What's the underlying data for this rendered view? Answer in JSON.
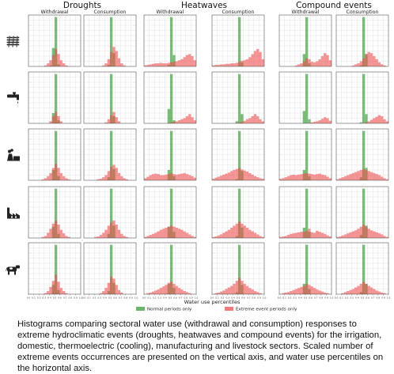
{
  "chart_data": {
    "type": "histogram-grid",
    "group_titles": [
      "Droughts",
      "Heatwaves",
      "Compound events"
    ],
    "column_titles": [
      "Withdrawal",
      "Consumption",
      "Withdrawal",
      "Consumption",
      "Withdrawal",
      "Consumption"
    ],
    "row_sectors": [
      "irrigation",
      "domestic",
      "thermoelectric (cooling)",
      "manufacturing",
      "livestock"
    ],
    "row_icon_names": [
      "wheat-icon",
      "faucet-icon",
      "power-plant-icon",
      "factory-icon",
      "cow-icon"
    ],
    "x_tick_labels": [
      "0.0",
      "0.1",
      "0.2",
      "0.3",
      "0.4",
      "0.5",
      "0.6",
      "0.7",
      "0.8",
      "0.9",
      "1.0"
    ],
    "xlim": [
      0,
      1
    ],
    "ylim": [
      0,
      10
    ],
    "bin_width": 0.05,
    "xlabel": "Water use percentiles",
    "legend": [
      {
        "label": "Normal periods only",
        "color": "#3a9e3a"
      },
      {
        "label": "Extreme event periods only",
        "color": "#ee4d4d"
      }
    ],
    "grid": true,
    "legend_position": "bottom-center",
    "normal_periods": [
      [
        [
          0,
          0,
          0,
          0,
          0,
          0,
          0,
          0,
          0.2,
          3.6,
          9.6,
          0.4,
          0,
          0,
          0,
          0,
          0,
          0,
          0,
          0
        ],
        [
          0,
          0,
          0,
          0,
          0,
          0,
          0,
          0,
          0,
          0.3,
          9.6,
          2.6,
          0,
          0,
          0,
          0,
          0,
          0,
          0,
          0
        ],
        [
          0,
          0,
          0,
          0,
          0,
          0,
          0,
          0,
          0,
          0.3,
          9.6,
          2.2,
          0,
          0,
          0,
          0,
          0,
          0,
          0,
          0
        ],
        [
          0,
          0,
          0,
          0,
          0,
          0,
          0,
          0,
          0,
          0,
          9.6,
          0.8,
          0,
          0,
          0,
          0,
          0,
          0,
          0,
          0
        ],
        [
          0,
          0,
          0,
          0,
          0,
          0,
          0,
          0,
          0,
          2.4,
          9.6,
          0.6,
          0,
          0,
          0,
          0,
          0,
          0,
          0,
          0
        ],
        [
          0,
          0,
          0,
          0,
          0,
          0,
          0,
          0,
          0,
          0.2,
          9.6,
          2.4,
          0,
          0,
          0,
          0,
          0,
          0,
          0,
          0
        ]
      ],
      [
        [
          0,
          0,
          0,
          0,
          0,
          0,
          0,
          0,
          0,
          2.0,
          9.6,
          0.6,
          0,
          0,
          0,
          0,
          0,
          0,
          0,
          0
        ],
        [
          0,
          0,
          0,
          0,
          0,
          0,
          0,
          0,
          0,
          0,
          9.6,
          1.4,
          0,
          0,
          0,
          0,
          0,
          0,
          0,
          0
        ],
        [
          0,
          0,
          0,
          0,
          0,
          0,
          0,
          0,
          0,
          2.8,
          9.6,
          0.6,
          0,
          0,
          0,
          0,
          0,
          0,
          0,
          0
        ],
        [
          0,
          0,
          0,
          0,
          0,
          0,
          0,
          0,
          0,
          0.4,
          9.6,
          1.8,
          0,
          0,
          0,
          0,
          0,
          0,
          0,
          0
        ],
        [
          0,
          0,
          0,
          0,
          0,
          0,
          0,
          0,
          0,
          2.4,
          9.6,
          0.8,
          0,
          0,
          0,
          0,
          0,
          0,
          0,
          0
        ],
        [
          0,
          0,
          0,
          0,
          0,
          0,
          0,
          0,
          0,
          0.2,
          9.6,
          1.8,
          0,
          0,
          0,
          0,
          0,
          0,
          0,
          0
        ]
      ],
      [
        [
          0,
          0,
          0,
          0,
          0,
          0,
          0,
          0,
          0,
          2.0,
          9.6,
          0.8,
          0,
          0,
          0,
          0,
          0,
          0,
          0,
          0
        ],
        [
          0,
          0,
          0,
          0,
          0,
          0,
          0,
          0,
          0,
          0.6,
          9.6,
          2.2,
          0,
          0,
          0,
          0,
          0,
          0,
          0,
          0
        ],
        [
          0,
          0,
          0,
          0,
          0,
          0,
          0,
          0,
          0,
          2.0,
          9.6,
          0.8,
          0,
          0,
          0,
          0,
          0,
          0,
          0,
          0
        ],
        [
          0,
          0,
          0,
          0,
          0,
          0,
          0,
          0,
          0,
          0.2,
          9.6,
          1.8,
          0,
          0,
          0,
          0,
          0,
          0,
          0,
          0
        ],
        [
          0,
          0,
          0,
          0,
          0,
          0,
          0,
          0,
          0,
          2.0,
          9.6,
          0.8,
          0,
          0,
          0,
          0,
          0,
          0,
          0,
          0
        ],
        [
          0,
          0,
          0,
          0,
          0,
          0,
          0,
          0,
          0,
          0.6,
          9.6,
          2.4,
          0,
          0,
          0,
          0,
          0,
          0,
          0,
          0
        ]
      ],
      [
        [
          0,
          0,
          0,
          0,
          0,
          0,
          0,
          0,
          0,
          2.2,
          9.6,
          0.8,
          0,
          0,
          0,
          0,
          0,
          0,
          0,
          0
        ],
        [
          0,
          0,
          0,
          0,
          0,
          0,
          0,
          0,
          0,
          0.8,
          9.6,
          2.4,
          0,
          0,
          0,
          0,
          0,
          0,
          0,
          0
        ],
        [
          0,
          0,
          0,
          0,
          0,
          0,
          0,
          0,
          0,
          2.2,
          9.6,
          1.2,
          0,
          0,
          0,
          0,
          0,
          0,
          0,
          0
        ],
        [
          0,
          0,
          0,
          0,
          0,
          0,
          0,
          0,
          0,
          0.4,
          9.6,
          2.0,
          0,
          0,
          0,
          0,
          0,
          0,
          0,
          0
        ],
        [
          0,
          0,
          0,
          0,
          0,
          0,
          0,
          0,
          0,
          2.0,
          9.6,
          1.2,
          0,
          0,
          0,
          0,
          0,
          0,
          0,
          0
        ],
        [
          0,
          0,
          0,
          0,
          0,
          0,
          0,
          0,
          0,
          0.6,
          9.6,
          2.4,
          0,
          0,
          0,
          0,
          0,
          0,
          0,
          0
        ]
      ],
      [
        [
          0,
          0,
          0,
          0,
          0,
          0,
          0,
          0,
          0,
          1.8,
          9.6,
          0.8,
          0,
          0,
          0,
          0,
          0,
          0,
          0,
          0
        ],
        [
          0,
          0,
          0,
          0,
          0,
          0,
          0,
          0,
          0,
          0.6,
          9.6,
          2.2,
          0,
          0,
          0,
          0,
          0,
          0,
          0,
          0
        ],
        [
          0,
          0,
          0,
          0,
          0,
          0,
          0,
          0,
          0,
          2.0,
          9.6,
          1.2,
          0,
          0,
          0,
          0,
          0,
          0,
          0,
          0
        ],
        [
          0,
          0,
          0,
          0,
          0,
          0,
          0,
          0,
          0,
          0.4,
          9.6,
          1.8,
          0,
          0,
          0,
          0,
          0,
          0,
          0,
          0
        ],
        [
          0,
          0,
          0,
          0,
          0,
          0,
          0,
          0,
          0,
          2.0,
          9.6,
          1.0,
          0,
          0,
          0,
          0,
          0,
          0,
          0,
          0
        ],
        [
          0,
          0,
          0,
          0,
          0,
          0,
          0,
          0,
          0,
          0.4,
          9.6,
          2.0,
          0,
          0,
          0,
          0,
          0,
          0,
          0,
          0
        ]
      ]
    ],
    "extreme_periods": [
      [
        [
          0,
          0,
          0,
          0,
          0,
          0,
          0.2,
          0.6,
          1.2,
          2.2,
          3.4,
          2.4,
          1.2,
          0.6,
          0.2,
          0,
          0,
          0,
          0,
          0
        ],
        [
          0,
          0,
          0,
          0,
          0,
          0,
          0,
          0.2,
          0.6,
          1.4,
          2.8,
          3.8,
          3.0,
          1.6,
          0.6,
          0.2,
          0,
          0,
          0,
          0
        ],
        [
          0.2,
          0.3,
          0.4,
          0.5,
          0.6,
          0.6,
          0.7,
          0.6,
          0.6,
          0.7,
          0.8,
          0.9,
          1.0,
          1.2,
          1.4,
          1.8,
          2.2,
          2.4,
          2.0,
          1.2
        ],
        [
          0.2,
          0.3,
          0.3,
          0.4,
          0.4,
          0.5,
          0.5,
          0.6,
          0.6,
          0.7,
          0.9,
          1.1,
          1.2,
          1.4,
          1.8,
          2.4,
          3.0,
          3.4,
          2.8,
          1.4
        ],
        [
          0,
          0,
          0,
          0,
          0,
          0,
          0.2,
          0.4,
          0.6,
          1.0,
          1.6,
          1.4,
          0.9,
          0.8,
          1.0,
          1.4,
          2.0,
          2.6,
          2.2,
          1.2
        ],
        [
          0,
          0,
          0,
          0,
          0,
          0,
          0.2,
          0.4,
          0.6,
          1.0,
          1.6,
          2.4,
          2.8,
          2.6,
          2.0,
          1.4,
          0.8,
          0.4,
          0.2,
          0
        ]
      ],
      [
        [
          0,
          0,
          0,
          0,
          0,
          0,
          0,
          0,
          0.4,
          1.4,
          2.2,
          1.4,
          0.4,
          0,
          0,
          0,
          0,
          0,
          0,
          0
        ],
        [
          0,
          0,
          0,
          0,
          0,
          0,
          0,
          0,
          0.2,
          0.8,
          1.6,
          2.2,
          1.2,
          0.4,
          0,
          0,
          0,
          0,
          0,
          0
        ],
        [
          0,
          0,
          0,
          0,
          0,
          0,
          0,
          0,
          0,
          0,
          0.2,
          0.3,
          0.4,
          0.6,
          0.8,
          1.0,
          1.4,
          1.8,
          1.2,
          0.6
        ],
        [
          0,
          0,
          0,
          0,
          0,
          0,
          0,
          0,
          0,
          0,
          0.2,
          0.3,
          0.5,
          0.8,
          1.0,
          1.4,
          1.8,
          1.4,
          0.8,
          0.4
        ],
        [
          0,
          0,
          0,
          0,
          0,
          0,
          0,
          0,
          0,
          0,
          0,
          0,
          0.2,
          0.3,
          0.4,
          0.6,
          0.9,
          1.2,
          1.0,
          0.5
        ],
        [
          0,
          0,
          0,
          0,
          0,
          0,
          0,
          0,
          0,
          0,
          0,
          0.2,
          0.4,
          0.7,
          1.0,
          1.3,
          1.6,
          1.4,
          0.8,
          0.4
        ]
      ],
      [
        [
          0,
          0,
          0,
          0,
          0,
          0.2,
          0.4,
          0.8,
          1.4,
          2.4,
          3.2,
          2.4,
          1.4,
          0.8,
          0.4,
          0.2,
          0,
          0,
          0,
          0
        ],
        [
          0,
          0,
          0,
          0,
          0,
          0.2,
          0.3,
          0.6,
          1.0,
          1.8,
          2.6,
          3.0,
          2.4,
          1.4,
          0.8,
          0.4,
          0.2,
          0,
          0,
          0
        ],
        [
          0.4,
          0.7,
          1.0,
          1.2,
          1.3,
          1.2,
          1.0,
          1.0,
          1.1,
          1.2,
          1.4,
          1.2,
          1.1,
          1.2,
          1.3,
          1.4,
          1.2,
          1.0,
          0.8,
          0.5
        ],
        [
          0.3,
          0.5,
          0.7,
          0.9,
          1.1,
          1.3,
          1.5,
          1.8,
          2.0,
          2.2,
          2.4,
          2.1,
          1.9,
          1.7,
          1.4,
          1.1,
          0.8,
          0.6,
          0.4,
          0.3
        ],
        [
          0.3,
          0.4,
          0.6,
          0.8,
          1.0,
          1.1,
          1.0,
          1.1,
          1.2,
          1.3,
          1.4,
          1.3,
          1.2,
          1.1,
          1.2,
          1.3,
          1.1,
          1.0,
          0.7,
          0.4
        ],
        [
          0.2,
          0.4,
          0.6,
          0.8,
          1.0,
          1.2,
          1.4,
          1.6,
          1.8,
          2.0,
          2.2,
          2.0,
          1.8,
          1.6,
          1.4,
          1.2,
          1.0,
          0.7,
          0.4,
          0.2
        ]
      ],
      [
        [
          0,
          0,
          0,
          0,
          0,
          0.2,
          0.4,
          1.0,
          1.8,
          2.8,
          3.4,
          2.6,
          1.6,
          0.9,
          0.4,
          0.2,
          0,
          0,
          0,
          0
        ],
        [
          0,
          0,
          0,
          0,
          0.2,
          0.3,
          0.6,
          1.0,
          1.6,
          2.4,
          3.0,
          3.4,
          2.6,
          1.6,
          0.8,
          0.4,
          0.2,
          0,
          0,
          0
        ],
        [
          0.2,
          0.4,
          0.6,
          0.8,
          1.0,
          1.3,
          1.6,
          1.8,
          2.0,
          2.2,
          2.4,
          2.2,
          2.0,
          1.8,
          1.6,
          1.3,
          1.0,
          0.7,
          0.4,
          0.2
        ],
        [
          0.2,
          0.3,
          0.5,
          0.7,
          1.0,
          1.3,
          1.6,
          2.0,
          2.4,
          2.8,
          3.2,
          2.8,
          2.4,
          2.0,
          1.6,
          1.3,
          1.0,
          0.7,
          0.4,
          0.2
        ],
        [
          0.2,
          0.3,
          0.4,
          0.6,
          0.8,
          0.9,
          1.0,
          1.1,
          1.2,
          1.2,
          1.4,
          1.8,
          1.1,
          1.0,
          1.4,
          1.2,
          1.0,
          0.8,
          0.5,
          0.3
        ],
        [
          0.2,
          0.3,
          0.5,
          0.7,
          0.9,
          1.1,
          1.3,
          1.5,
          1.8,
          2.2,
          2.6,
          2.2,
          1.8,
          1.5,
          1.3,
          1.1,
          0.9,
          0.7,
          0.4,
          0.2
        ]
      ],
      [
        [
          0,
          0,
          0,
          0,
          0,
          0,
          0.2,
          0.6,
          1.4,
          2.6,
          3.8,
          2.4,
          1.2,
          0.6,
          0.2,
          0,
          0,
          0,
          0,
          0
        ],
        [
          0,
          0,
          0,
          0,
          0,
          0,
          0.2,
          0.6,
          1.2,
          2.2,
          3.4,
          3.0,
          1.8,
          0.8,
          0.3,
          0,
          0,
          0,
          0,
          0
        ],
        [
          0,
          0.2,
          0.3,
          0.5,
          0.7,
          0.9,
          1.2,
          1.5,
          1.8,
          2.2,
          2.4,
          2.0,
          1.6,
          1.2,
          0.9,
          0.6,
          0.4,
          0.2,
          0,
          0
        ],
        [
          0,
          0.2,
          0.3,
          0.5,
          0.7,
          1.0,
          1.3,
          1.6,
          2.0,
          2.6,
          3.2,
          2.6,
          2.0,
          1.6,
          1.2,
          0.9,
          0.6,
          0.4,
          0.2,
          0
        ],
        [
          0,
          0.2,
          0.3,
          0.4,
          0.6,
          0.8,
          1.0,
          1.2,
          1.4,
          1.6,
          2.0,
          1.8,
          1.5,
          1.2,
          0.9,
          0.7,
          0.5,
          0.3,
          0.2,
          0
        ],
        [
          0,
          0,
          0.2,
          0.4,
          0.6,
          0.8,
          1.0,
          1.3,
          1.6,
          2.0,
          2.4,
          2.0,
          1.6,
          1.3,
          1.0,
          0.7,
          0.5,
          0.3,
          0.2,
          0
        ]
      ]
    ]
  },
  "caption": "Histograms comparing sectoral water use (withdrawal and consumption) responses to extreme hydroclimatic events (droughts, heatwaves and compound events) for the irrigation, domestic, thermoelectric (cooling), manufacturing and livestock sectors. Scaled number of extreme events occurrences are presented on the vertical axis, and water use percentiles on the horizontal axis."
}
